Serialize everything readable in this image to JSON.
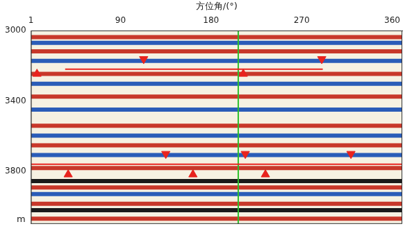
{
  "chart_data": {
    "type": "seismic_section",
    "xlabel": "方位角/(°)",
    "ylabel": "m",
    "xlim": [
      1,
      370
    ],
    "xticks": [
      1,
      90,
      180,
      270,
      360
    ],
    "ylim": [
      3000,
      4100
    ],
    "yticks": [
      3000,
      3400,
      3800
    ],
    "grid": false,
    "reflectors": {
      "depth": [
        3037,
        3070,
        3118,
        3173,
        3247,
        3303,
        3376,
        3450,
        3542,
        3598,
        3653,
        3708,
        3782,
        3856,
        3893,
        3930,
        3985,
        4022,
        4070
      ],
      "colors": [
        "#c8382a",
        "#2a5cb8",
        "#c8382a",
        "#2a5cb8",
        "#c8382a",
        "#2a5cb8",
        "#c8382a",
        "#2a5cb8",
        "#c8382a",
        "#2a5cb8",
        "#c8382a",
        "#2a5cb8",
        "#c8382a",
        "#1a1a1a",
        "#c8382a",
        "#2a5cb8",
        "#c8382a",
        "#1a1a1a",
        "#c8382a"
      ]
    },
    "series": [
      {
        "type": "line",
        "color": "#e8231e",
        "x": [
          35,
          291
        ],
        "values": [
          3220,
          3220
        ]
      },
      {
        "type": "line",
        "color": "#e8231e",
        "x": [
          1,
          370
        ],
        "values": [
          3760,
          3760
        ]
      },
      {
        "type": "line",
        "color": "#2bbf2b",
        "x": [
          207,
          207
        ],
        "values": [
          3000,
          4100
        ]
      },
      {
        "type": "scatter",
        "color": "#e8231e",
        "marker": "triangle-down",
        "x": [
          113,
          290,
          135,
          214,
          319
        ],
        "values": [
          3162,
          3162,
          3701,
          3701,
          3701
        ]
      },
      {
        "type": "scatter",
        "color": "#e8231e",
        "marker": "triangle-up",
        "x": [
          7,
          212,
          38,
          162,
          234
        ],
        "values": [
          3247,
          3247,
          3819,
          3819,
          3819
        ]
      }
    ]
  }
}
